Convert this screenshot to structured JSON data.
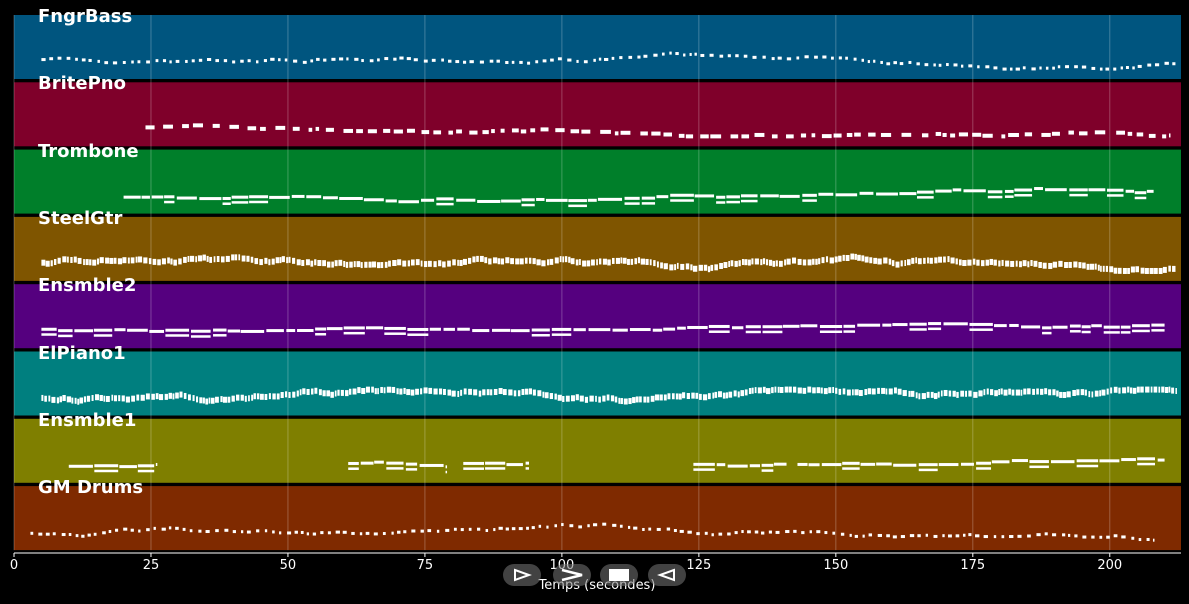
{
  "tracks": [
    {
      "name": "FngrBass",
      "color": "#00557f"
    },
    {
      "name": "BritePno",
      "color": "#7f002a"
    },
    {
      "name": "Trombone",
      "color": "#007f2a"
    },
    {
      "name": "SteelGtr",
      "color": "#7f5500"
    },
    {
      "name": "Ensmble2",
      "color": "#55007f"
    },
    {
      "name": "ElPiano1",
      "color": "#007f7f"
    },
    {
      "name": "Ensmble1",
      "color": "#7f7f00"
    },
    {
      "name": "GM Drums",
      "color": "#7f2a00"
    }
  ],
  "axis": {
    "label": "Temps (secondes)",
    "ticks": [
      "0",
      "25",
      "50",
      "75",
      "100",
      "125",
      "150",
      "175",
      "200"
    ]
  },
  "controls": {
    "play_icon": "play-icon",
    "forward_icon": "fast-forward-icon",
    "stop_icon": "stop-icon",
    "back_icon": "rewind-icon"
  },
  "chart_data": {
    "type": "piano-roll",
    "xlabel": "Temps (secondes)",
    "xlim": [
      0,
      213
    ],
    "x_ticks": [
      0,
      25,
      50,
      75,
      100,
      125,
      150,
      175,
      200
    ],
    "grid": true,
    "series": [
      {
        "name": "FngrBass",
        "start": 5,
        "end": 212,
        "pattern": "dots",
        "segments": []
      },
      {
        "name": "BritePno",
        "start": 24,
        "end": 211,
        "pattern": "blocks",
        "segments": []
      },
      {
        "name": "Trombone",
        "start": 20,
        "end": 208,
        "pattern": "line",
        "segments": []
      },
      {
        "name": "SteelGtr",
        "start": 5,
        "end": 212,
        "pattern": "dense",
        "segments": []
      },
      {
        "name": "Ensmble2",
        "start": 5,
        "end": 210,
        "pattern": "line",
        "segments": []
      },
      {
        "name": "ElPiano1",
        "start": 5,
        "end": 212,
        "pattern": "dense",
        "segments": []
      },
      {
        "name": "Ensmble1",
        "start": 10,
        "end": 210,
        "pattern": "line",
        "segments": [
          [
            10,
            26
          ],
          [
            61,
            79
          ],
          [
            82,
            94
          ],
          [
            124,
            141
          ],
          [
            143,
            210
          ]
        ]
      },
      {
        "name": "GM Drums",
        "start": 3,
        "end": 208,
        "pattern": "dots",
        "segments": []
      }
    ]
  }
}
